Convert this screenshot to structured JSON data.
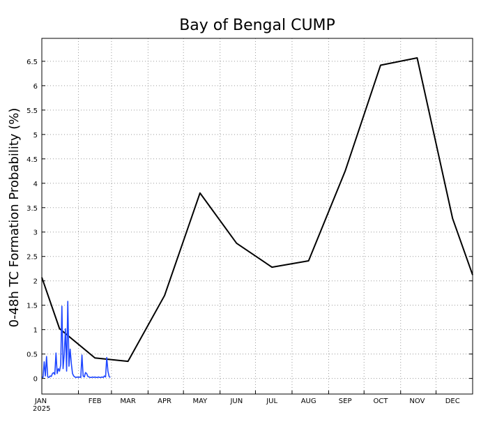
{
  "chart_data": {
    "type": "line",
    "title": "Bay of Bengal CUMP",
    "xlabel": "",
    "ylabel": "0-48h TC Formation Probability (%)",
    "year_label": "2025",
    "x_tick_labels": [
      "JAN",
      "FEB",
      "MAR",
      "APR",
      "MAY",
      "JUN",
      "JUL",
      "AUG",
      "SEP",
      "OCT",
      "NOV",
      "DEC"
    ],
    "y_ticks": [
      0,
      0.5,
      1,
      1.5,
      2,
      2.5,
      3,
      3.5,
      4,
      4.5,
      5,
      5.5,
      6,
      6.5
    ],
    "y_tick_labels": [
      "0",
      "0.5",
      "1",
      "1.5",
      "2",
      "2.5",
      "3",
      "3.5",
      "4",
      "4.5",
      "5",
      "5.5",
      "6",
      "6.5"
    ],
    "xlim": [
      "2025-01-01",
      "2026-01-01"
    ],
    "ylim": [
      -0.32,
      6.97
    ],
    "grid": true,
    "series": [
      {
        "color": "#000000",
        "x": [
          "2025-01-01",
          "2025-01-16",
          "2025-02-15",
          "2025-03-15",
          "2025-04-15",
          "2025-05-15",
          "2025-06-15",
          "2025-07-15",
          "2025-08-15",
          "2025-09-15",
          "2025-10-15",
          "2025-11-15",
          "2025-12-15",
          "2026-01-01"
        ],
        "y": [
          2.07,
          1.02,
          0.42,
          0.35,
          1.7,
          3.8,
          2.77,
          2.28,
          2.41,
          4.25,
          6.42,
          6.57,
          3.28,
          2.12
        ]
      },
      {
        "color": "#1f47ff",
        "x": [
          "2025-01-01",
          "2025-01-02",
          "2025-01-03",
          "2025-01-04",
          "2025-01-05",
          "2025-01-06",
          "2025-01-07",
          "2025-01-08",
          "2025-01-09",
          "2025-01-10",
          "2025-01-11",
          "2025-01-12",
          "2025-01-13",
          "2025-01-14",
          "2025-01-15",
          "2025-01-16",
          "2025-01-17",
          "2025-01-18",
          "2025-01-19",
          "2025-01-20",
          "2025-01-21",
          "2025-01-22",
          "2025-01-23",
          "2025-01-24",
          "2025-01-25",
          "2025-01-26",
          "2025-01-27",
          "2025-01-28",
          "2025-01-29",
          "2025-01-30",
          "2025-01-31",
          "2025-02-01",
          "2025-02-02",
          "2025-02-03",
          "2025-02-04",
          "2025-02-05",
          "2025-02-06",
          "2025-02-07",
          "2025-02-08",
          "2025-02-09",
          "2025-02-10",
          "2025-02-11",
          "2025-02-12",
          "2025-02-13",
          "2025-02-14",
          "2025-02-15",
          "2025-02-16",
          "2025-02-17",
          "2025-02-18",
          "2025-02-19",
          "2025-02-20",
          "2025-02-21",
          "2025-02-22",
          "2025-02-23",
          "2025-02-24",
          "2025-02-25",
          "2025-02-26",
          "2025-02-27",
          "2025-02-28"
        ],
        "y": [
          0.03,
          0.02,
          0.34,
          0.05,
          0.45,
          0.03,
          0.02,
          0.05,
          0.04,
          0.1,
          0.12,
          0.08,
          0.52,
          0.1,
          0.2,
          0.15,
          0.28,
          1.48,
          0.2,
          0.5,
          1.02,
          0.15,
          1.58,
          0.25,
          0.6,
          0.3,
          0.1,
          0.05,
          0.03,
          0.02,
          0.03,
          0.02,
          0.03,
          0.02,
          0.48,
          0.05,
          0.03,
          0.12,
          0.1,
          0.04,
          0.03,
          0.02,
          0.02,
          0.03,
          0.02,
          0.03,
          0.02,
          0.02,
          0.03,
          0.02,
          0.02,
          0.03,
          0.02,
          0.05,
          0.03,
          0.43,
          0.15,
          0.04,
          0.02
        ]
      }
    ]
  }
}
